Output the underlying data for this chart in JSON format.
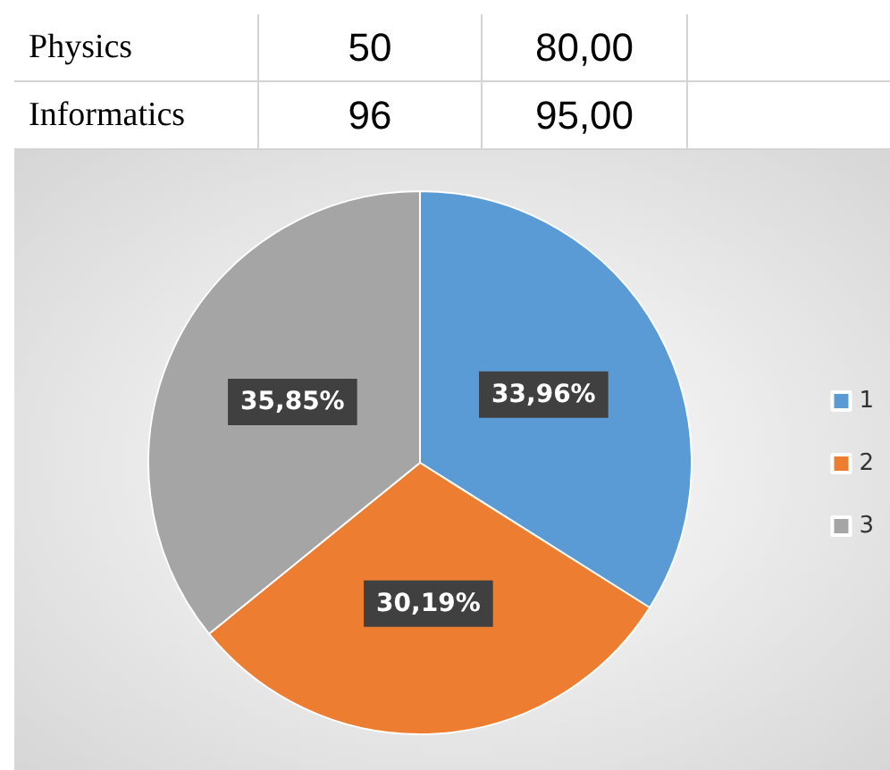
{
  "chart_data": [
    {
      "type": "other",
      "annotations": [
        "Physics",
        "50",
        "80,00",
        "Informatics",
        "96",
        "95,00"
      ]
    },
    {
      "type": "pie",
      "categories": [
        "1",
        "2",
        "3"
      ],
      "values": [
        33.96,
        30.19,
        35.85
      ],
      "colors": [
        "#5b9bd5",
        "#ed7d31",
        "#a5a5a5"
      ],
      "value_labels": [
        "33,96%",
        "30,19%",
        "35,85%"
      ],
      "legend": "right"
    }
  ]
}
